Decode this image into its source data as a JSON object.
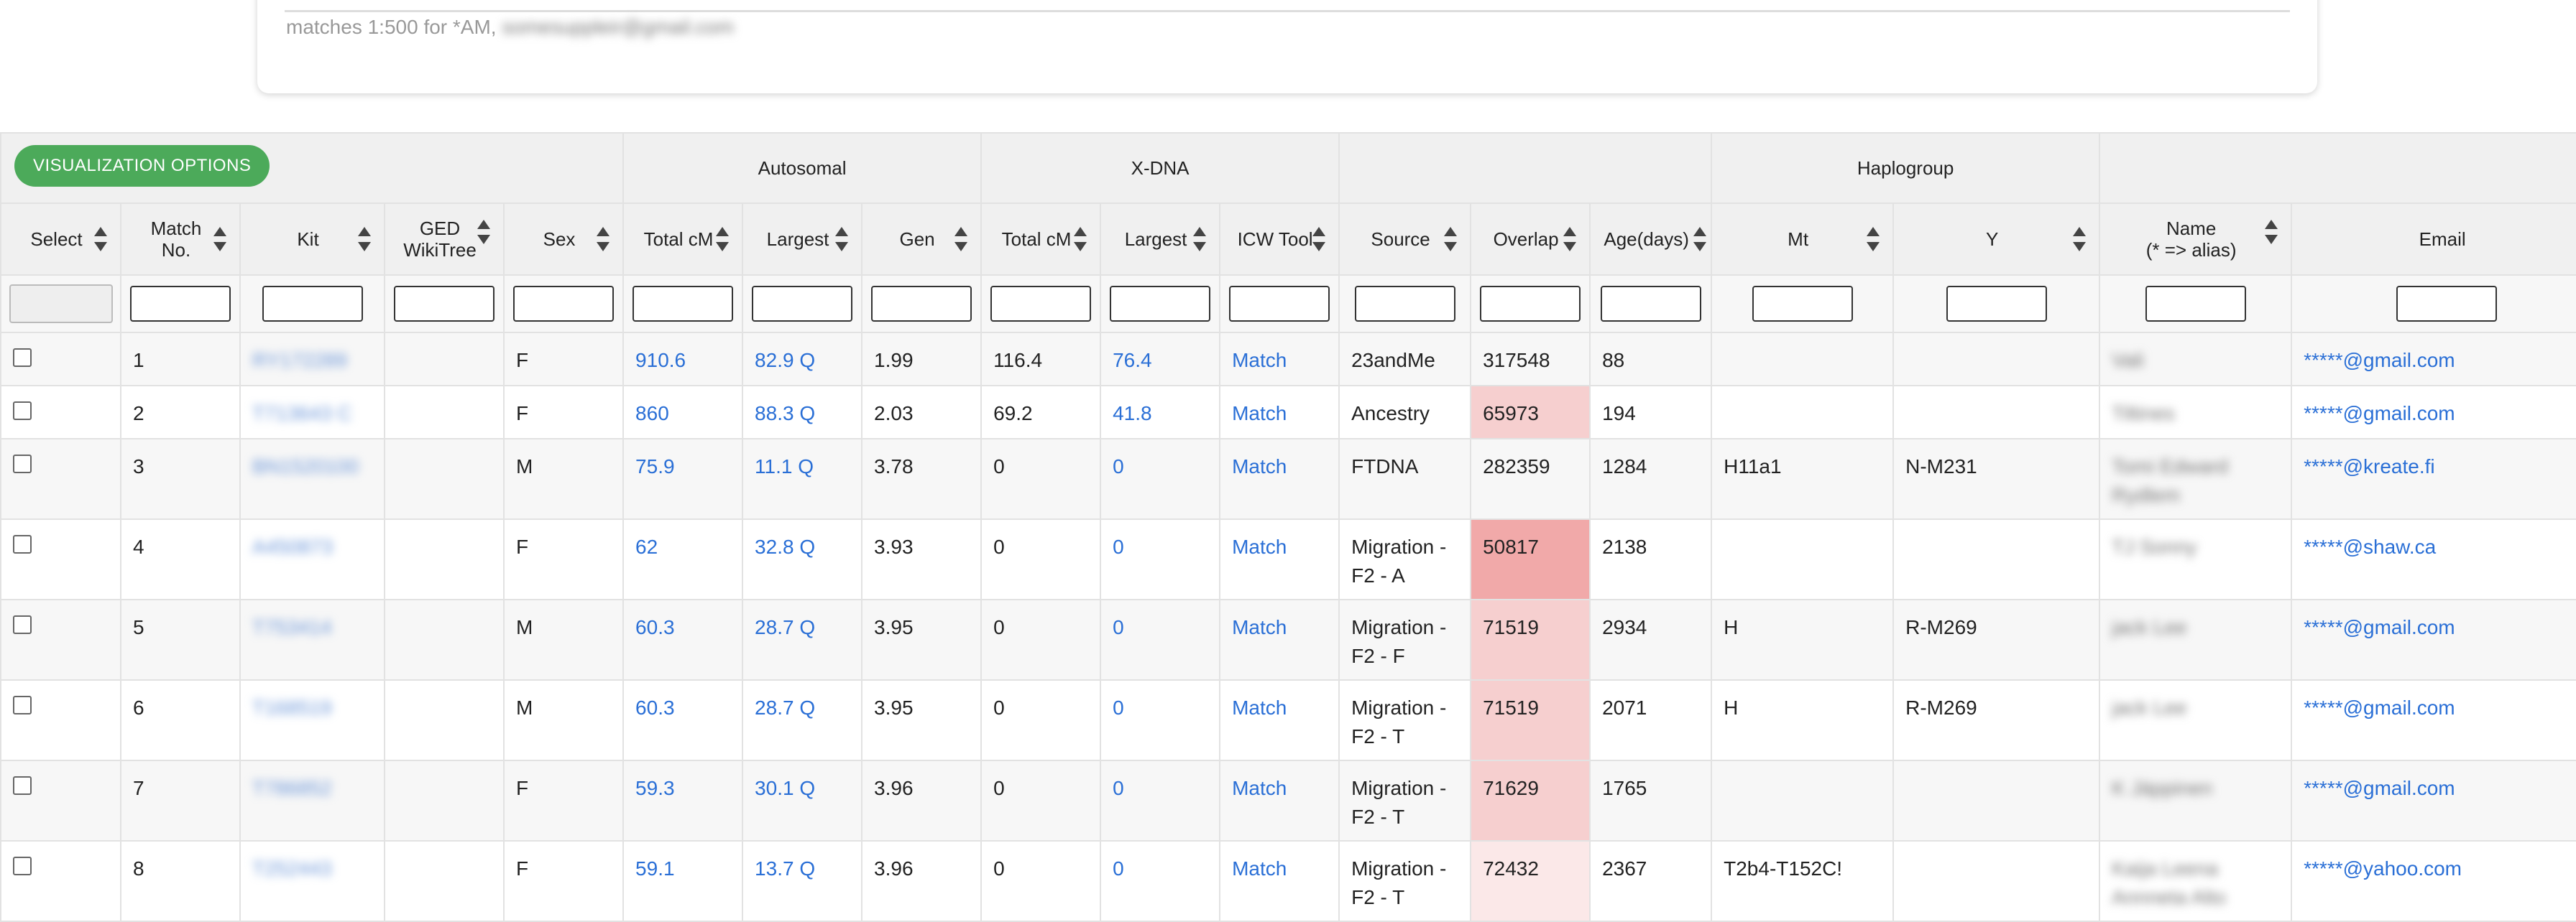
{
  "header": {
    "matches_text": "matches 1:500 for *AM,",
    "blurred_email": "somesuppleir@gmail.com"
  },
  "toolbar": {
    "viz_button": "VISUALIZATION OPTIONS"
  },
  "groups": {
    "autosomal": "Autosomal",
    "xdna": "X-DNA",
    "haplogroup": "Haplogroup"
  },
  "columns": {
    "select": "Select",
    "match_no_1": "Match",
    "match_no_2": "No.",
    "kit": "Kit",
    "ged_1": "GED",
    "ged_2": "WikiTree",
    "sex": "Sex",
    "a_total": "Total cM",
    "a_largest": "Largest",
    "gen": "Gen",
    "x_total": "Total cM",
    "x_largest": "Largest",
    "icw": "ICW Tool",
    "source": "Source",
    "overlap": "Overlap",
    "age": "Age(days)",
    "mt": "Mt",
    "y": "Y",
    "name_1": "Name",
    "name_2": "(* => alias)",
    "email": "Email"
  },
  "colors": {
    "link": "#2a6fd6",
    "button": "#4caa5a",
    "overlap_light": "#f6cfcf",
    "overlap_dark": "#f1a9a9"
  },
  "rows": [
    {
      "no": "1",
      "kit": "RY172289",
      "sex": "F",
      "a_total": "910.6",
      "a_largest": "82.9 Q",
      "gen": "1.99",
      "x_total": "116.4",
      "x_largest": "76.4",
      "icw": "Match",
      "source_1": "23andMe",
      "source_2": "",
      "overlap": "317548",
      "age": "88",
      "mt": "",
      "y": "",
      "name_1": "Vali",
      "name_2": "",
      "email": "*****@gmail.com"
    },
    {
      "no": "2",
      "kit": "T713643 C",
      "sex": "F",
      "a_total": "860",
      "a_largest": "88.3 Q",
      "gen": "2.03",
      "x_total": "69.2",
      "x_largest": "41.8",
      "icw": "Match",
      "source_1": "Ancestry",
      "source_2": "",
      "overlap": "65973",
      "age": "194",
      "mt": "",
      "y": "",
      "name_1": "Tiltines",
      "name_2": "",
      "email": "*****@gmail.com"
    },
    {
      "no": "3",
      "kit": "BN1520100",
      "sex": "M",
      "a_total": "75.9",
      "a_largest": "11.1 Q",
      "gen": "3.78",
      "x_total": "0",
      "x_largest": "0",
      "icw": "Match",
      "source_1": "FTDNA",
      "source_2": "",
      "overlap": "282359",
      "age": "1284",
      "mt": "H11a1",
      "y": "N-M231",
      "name_1": "Tomi Edward",
      "name_2": "Rydlem",
      "email": "*****@kreate.fi"
    },
    {
      "no": "4",
      "kit": "A450873",
      "sex": "F",
      "a_total": "62",
      "a_largest": "32.8 Q",
      "gen": "3.93",
      "x_total": "0",
      "x_largest": "0",
      "icw": "Match",
      "source_1": "Migration -",
      "source_2": "F2 - A",
      "overlap": "50817",
      "age": "2138",
      "mt": "",
      "y": "",
      "name_1": "TJ Sonny",
      "name_2": "",
      "email": "*****@shaw.ca"
    },
    {
      "no": "5",
      "kit": "T753414",
      "sex": "M",
      "a_total": "60.3",
      "a_largest": "28.7 Q",
      "gen": "3.95",
      "x_total": "0",
      "x_largest": "0",
      "icw": "Match",
      "source_1": "Migration -",
      "source_2": "F2 - F",
      "overlap": "71519",
      "age": "2934",
      "mt": "H",
      "y": "R-M269",
      "name_1": "jack Lee",
      "name_2": "",
      "email": "*****@gmail.com"
    },
    {
      "no": "6",
      "kit": "T168519",
      "sex": "M",
      "a_total": "60.3",
      "a_largest": "28.7 Q",
      "gen": "3.95",
      "x_total": "0",
      "x_largest": "0",
      "icw": "Match",
      "source_1": "Migration -",
      "source_2": "F2 - T",
      "overlap": "71519",
      "age": "2071",
      "mt": "H",
      "y": "R-M269",
      "name_1": "jack Lee",
      "name_2": "",
      "email": "*****@gmail.com"
    },
    {
      "no": "7",
      "kit": "T786852",
      "sex": "F",
      "a_total": "59.3",
      "a_largest": "30.1 Q",
      "gen": "3.96",
      "x_total": "0",
      "x_largest": "0",
      "icw": "Match",
      "source_1": "Migration -",
      "source_2": "F2 - T",
      "overlap": "71629",
      "age": "1765",
      "mt": "",
      "y": "",
      "name_1": "K Jäppinen",
      "name_2": "",
      "email": "*****@gmail.com"
    },
    {
      "no": "8",
      "kit": "T252443",
      "sex": "F",
      "a_total": "59.1",
      "a_largest": "13.7 Q",
      "gen": "3.96",
      "x_total": "0",
      "x_largest": "0",
      "icw": "Match",
      "source_1": "Migration -",
      "source_2": "F2 - T",
      "overlap": "72432",
      "age": "2367",
      "mt": "T2b4-T152C!",
      "y": "",
      "name_1": "Kaija Leena",
      "name_2": "Annneta Alto",
      "email": "*****@yahoo.com"
    }
  ]
}
